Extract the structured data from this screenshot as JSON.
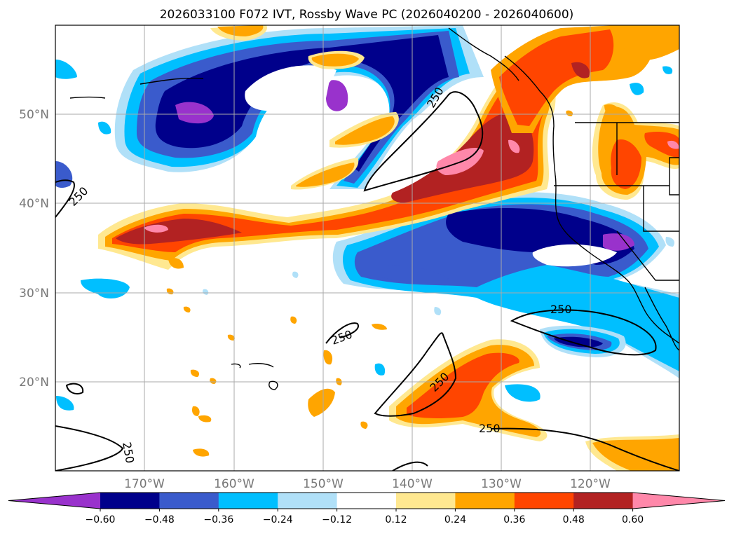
{
  "title": "2026033100 F072 IVT, Rossby Wave PC (2026040200 - 2026040600)",
  "lon_labels": [
    "170°W",
    "160°W",
    "150°W",
    "140°W",
    "130°W",
    "120°W"
  ],
  "lat_labels": [
    "50°N",
    "40°N",
    "30°N",
    "20°N"
  ],
  "contour_label": "250",
  "colorbar": {
    "ticks": [
      "−0.60",
      "−0.48",
      "−0.36",
      "−0.24",
      "−0.12",
      "0.12",
      "0.24",
      "0.36",
      "0.48",
      "0.60"
    ],
    "colors": [
      "#9932cc",
      "#00008b",
      "#3a5bcc",
      "#00bfff",
      "#b0e0f8",
      "#ffffff",
      "#ffe890",
      "#ffa500",
      "#ff4500",
      "#b22222",
      "#ff88aa"
    ]
  },
  "palette": {
    "neg_strong": "#9932cc",
    "neg_high": "#00008b",
    "neg_mid": "#3a5bcc",
    "neg_low": "#00bfff",
    "neg_weak": "#b0e0f8",
    "pos_weak": "#ffe890",
    "pos_low": "#ffa500",
    "pos_mid": "#ff4500",
    "pos_high": "#b22222",
    "pos_strong": "#ff88aa"
  }
}
